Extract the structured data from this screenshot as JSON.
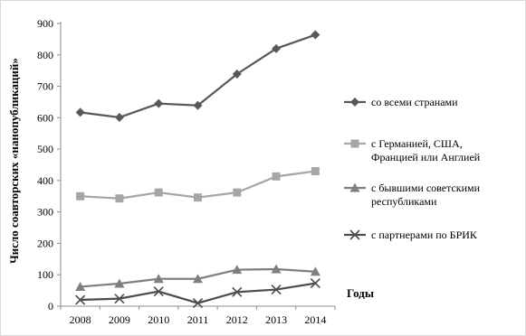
{
  "chart_data": {
    "type": "line",
    "title": "",
    "ylabel": "Число соавторских «нанопубликаций»",
    "xlabel": "Годы",
    "ylim": [
      0,
      900
    ],
    "yticks": [
      0,
      100,
      200,
      300,
      400,
      500,
      600,
      700,
      800,
      900
    ],
    "categories": [
      "2008",
      "2009",
      "2010",
      "2011",
      "2012",
      "2013",
      "2014"
    ],
    "grid": false,
    "legend_position": "right",
    "series": [
      {
        "name": "со всеми странами",
        "marker": "diamond",
        "color": "#595959",
        "values": [
          617,
          601,
          645,
          639,
          739,
          820,
          864
        ]
      },
      {
        "name": "с Германией, США, Францией или Англией",
        "legend_lines": [
          "с Германией, США,",
          "Францией или Англией"
        ],
        "marker": "square",
        "color": "#a6a6a6",
        "values": [
          350,
          343,
          362,
          346,
          362,
          413,
          430
        ]
      },
      {
        "name": "с бывшими советскими республиками",
        "legend_lines": [
          "с бывшими советскими",
          "республиками"
        ],
        "marker": "triangle",
        "color": "#7f7f7f",
        "values": [
          62,
          72,
          87,
          87,
          116,
          118,
          110
        ]
      },
      {
        "name": "с партнерами по БРИК",
        "marker": "x",
        "color": "#4d4d4d",
        "values": [
          20,
          24,
          47,
          10,
          45,
          53,
          73
        ]
      }
    ]
  }
}
